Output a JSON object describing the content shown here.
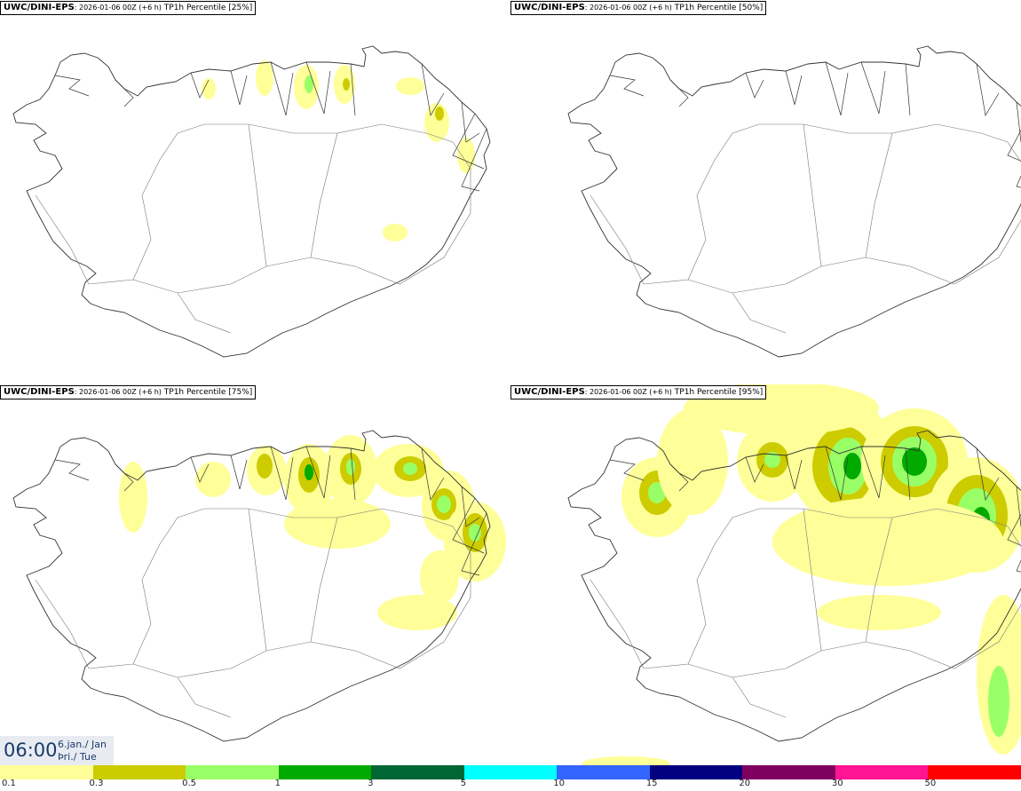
{
  "panels": [
    {
      "model": "UWC/DINI-EPS",
      "run": ": 2026-01-06 00Z (+6 h)",
      "product": "TP1h Percentile [25%]",
      "level": 1
    },
    {
      "model": "UWC/DINI-EPS",
      "run": ": 2026-01-06 00Z (+6 h)",
      "product": "TP1h Percentile [50%]",
      "level": 2
    },
    {
      "model": "UWC/DINI-EPS",
      "run": ": 2026-01-06 00Z (+6 h)",
      "product": "TP1h Percentile [75%]",
      "level": 3
    },
    {
      "model": "UWC/DINI-EPS",
      "run": ": 2026-01-06 00Z (+6 h)",
      "product": "TP1h Percentile [95%]",
      "level": 4
    }
  ],
  "valid_time": {
    "time": "06:00",
    "date_line1": "6.jan./ Jan",
    "date_line2": "Þri./ Tue"
  },
  "legend": {
    "colors": [
      "#ffff99",
      "#cccc00",
      "#99ff66",
      "#00aa00",
      "#006633",
      "#00ffff",
      "#3366ff",
      "#000080",
      "#800060",
      "#ff1493",
      "#ff0000"
    ],
    "labels": [
      "0.1",
      "0.3",
      "0.5",
      "1",
      "3",
      "5",
      "10",
      "15",
      "20",
      "30",
      "50"
    ]
  }
}
